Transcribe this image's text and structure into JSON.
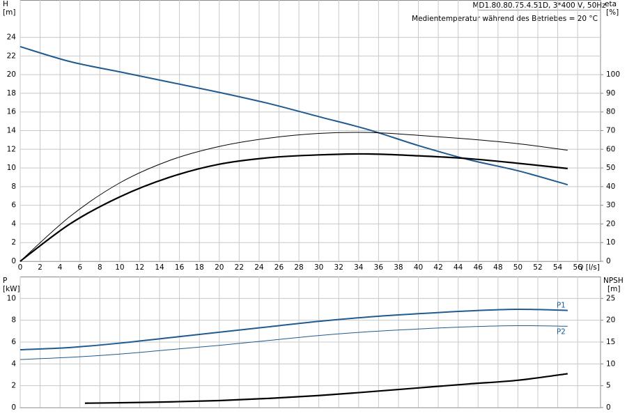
{
  "chart_data": [
    {
      "type": "line",
      "title": "MD1.80.80.75.4.51D, 3*400 V, 50Hz",
      "subtitle": "Medientemperatur während des Betriebes = 20 °C",
      "x_label": "Q [l/s]",
      "y_label": "H",
      "y_unit": "[m]",
      "y2_label": "eta",
      "y2_unit": "[%]",
      "xlim": [
        0,
        58.3
      ],
      "xticks": [
        0,
        2,
        4,
        6,
        8,
        10,
        12,
        14,
        16,
        18,
        20,
        22,
        24,
        26,
        28,
        30,
        32,
        34,
        36,
        38,
        40,
        42,
        44,
        46,
        48,
        50,
        52,
        54,
        56
      ],
      "ylim": [
        0,
        28
      ],
      "yticks": [
        0,
        2,
        4,
        6,
        8,
        10,
        12,
        14,
        16,
        18,
        20,
        22,
        24
      ],
      "y2lim": [
        0,
        140
      ],
      "y2ticks": [
        0,
        10,
        20,
        30,
        40,
        50,
        60,
        70,
        80,
        90,
        100
      ],
      "grid": true,
      "series": [
        {
          "color": "#1f5a91",
          "width": 2,
          "x": [
            0,
            5,
            10,
            15,
            20,
            25,
            30,
            35,
            40,
            45,
            50,
            55
          ],
          "values": [
            23,
            21.4,
            20.3,
            19.2,
            18.1,
            16.9,
            15.5,
            14.1,
            12.4,
            10.9,
            9.7,
            8.2
          ]
        },
        {
          "color": "#000000",
          "width": 1,
          "axis": "y2",
          "x": [
            0,
            5,
            10,
            15,
            20,
            25,
            30,
            35,
            40,
            45,
            50,
            55
          ],
          "values": [
            0,
            24,
            42,
            54,
            61.5,
            66,
            68.5,
            69,
            67.5,
            65.5,
            63,
            59.5
          ]
        },
        {
          "color": "#000000",
          "width": 2.2,
          "axis": "y2",
          "x": [
            0,
            5,
            10,
            15,
            20,
            25,
            30,
            35,
            40,
            45,
            50,
            55
          ],
          "values": [
            0,
            20,
            34.5,
            45,
            52,
            55.5,
            57,
            57.5,
            56.5,
            55,
            52.5,
            49.7
          ]
        }
      ]
    },
    {
      "type": "line",
      "y_label": "P",
      "y_unit": "[kW]",
      "y2_label": "NPSH",
      "y2_unit": "[m]",
      "xlim": [
        0,
        58.3
      ],
      "xticks": [
        0,
        2,
        4,
        6,
        8,
        10,
        12,
        14,
        16,
        18,
        20,
        22,
        24,
        26,
        28,
        30,
        32,
        34,
        36,
        38,
        40,
        42,
        44,
        46,
        48,
        50,
        52,
        54,
        56
      ],
      "ylim": [
        0,
        12
      ],
      "yticks": [
        0,
        2,
        4,
        6,
        8,
        10
      ],
      "y2lim": [
        0,
        30
      ],
      "y2ticks": [
        0,
        5,
        10,
        15,
        20,
        25
      ],
      "grid": true,
      "series": [
        {
          "name": "P1",
          "color": "#1f5a91",
          "width": 2,
          "x": [
            0,
            5,
            10,
            15,
            20,
            25,
            30,
            35,
            40,
            45,
            50,
            55
          ],
          "values": [
            5.3,
            5.5,
            5.9,
            6.4,
            6.9,
            7.4,
            7.9,
            8.3,
            8.6,
            8.85,
            9.0,
            8.9
          ]
        },
        {
          "name": "P2",
          "color": "#1f5a91",
          "width": 1,
          "x": [
            0,
            5,
            10,
            15,
            20,
            25,
            30,
            35,
            40,
            45,
            50,
            55
          ],
          "values": [
            4.4,
            4.6,
            4.9,
            5.3,
            5.7,
            6.15,
            6.6,
            6.95,
            7.2,
            7.4,
            7.5,
            7.45
          ]
        },
        {
          "color": "#000000",
          "width": 2.2,
          "axis": "y2",
          "x": [
            6.5,
            10,
            15,
            20,
            25,
            30,
            35,
            40,
            45,
            50,
            55
          ],
          "values": [
            1.0,
            1.1,
            1.3,
            1.6,
            2.1,
            2.75,
            3.6,
            4.5,
            5.4,
            6.25,
            7.75
          ]
        }
      ]
    }
  ]
}
